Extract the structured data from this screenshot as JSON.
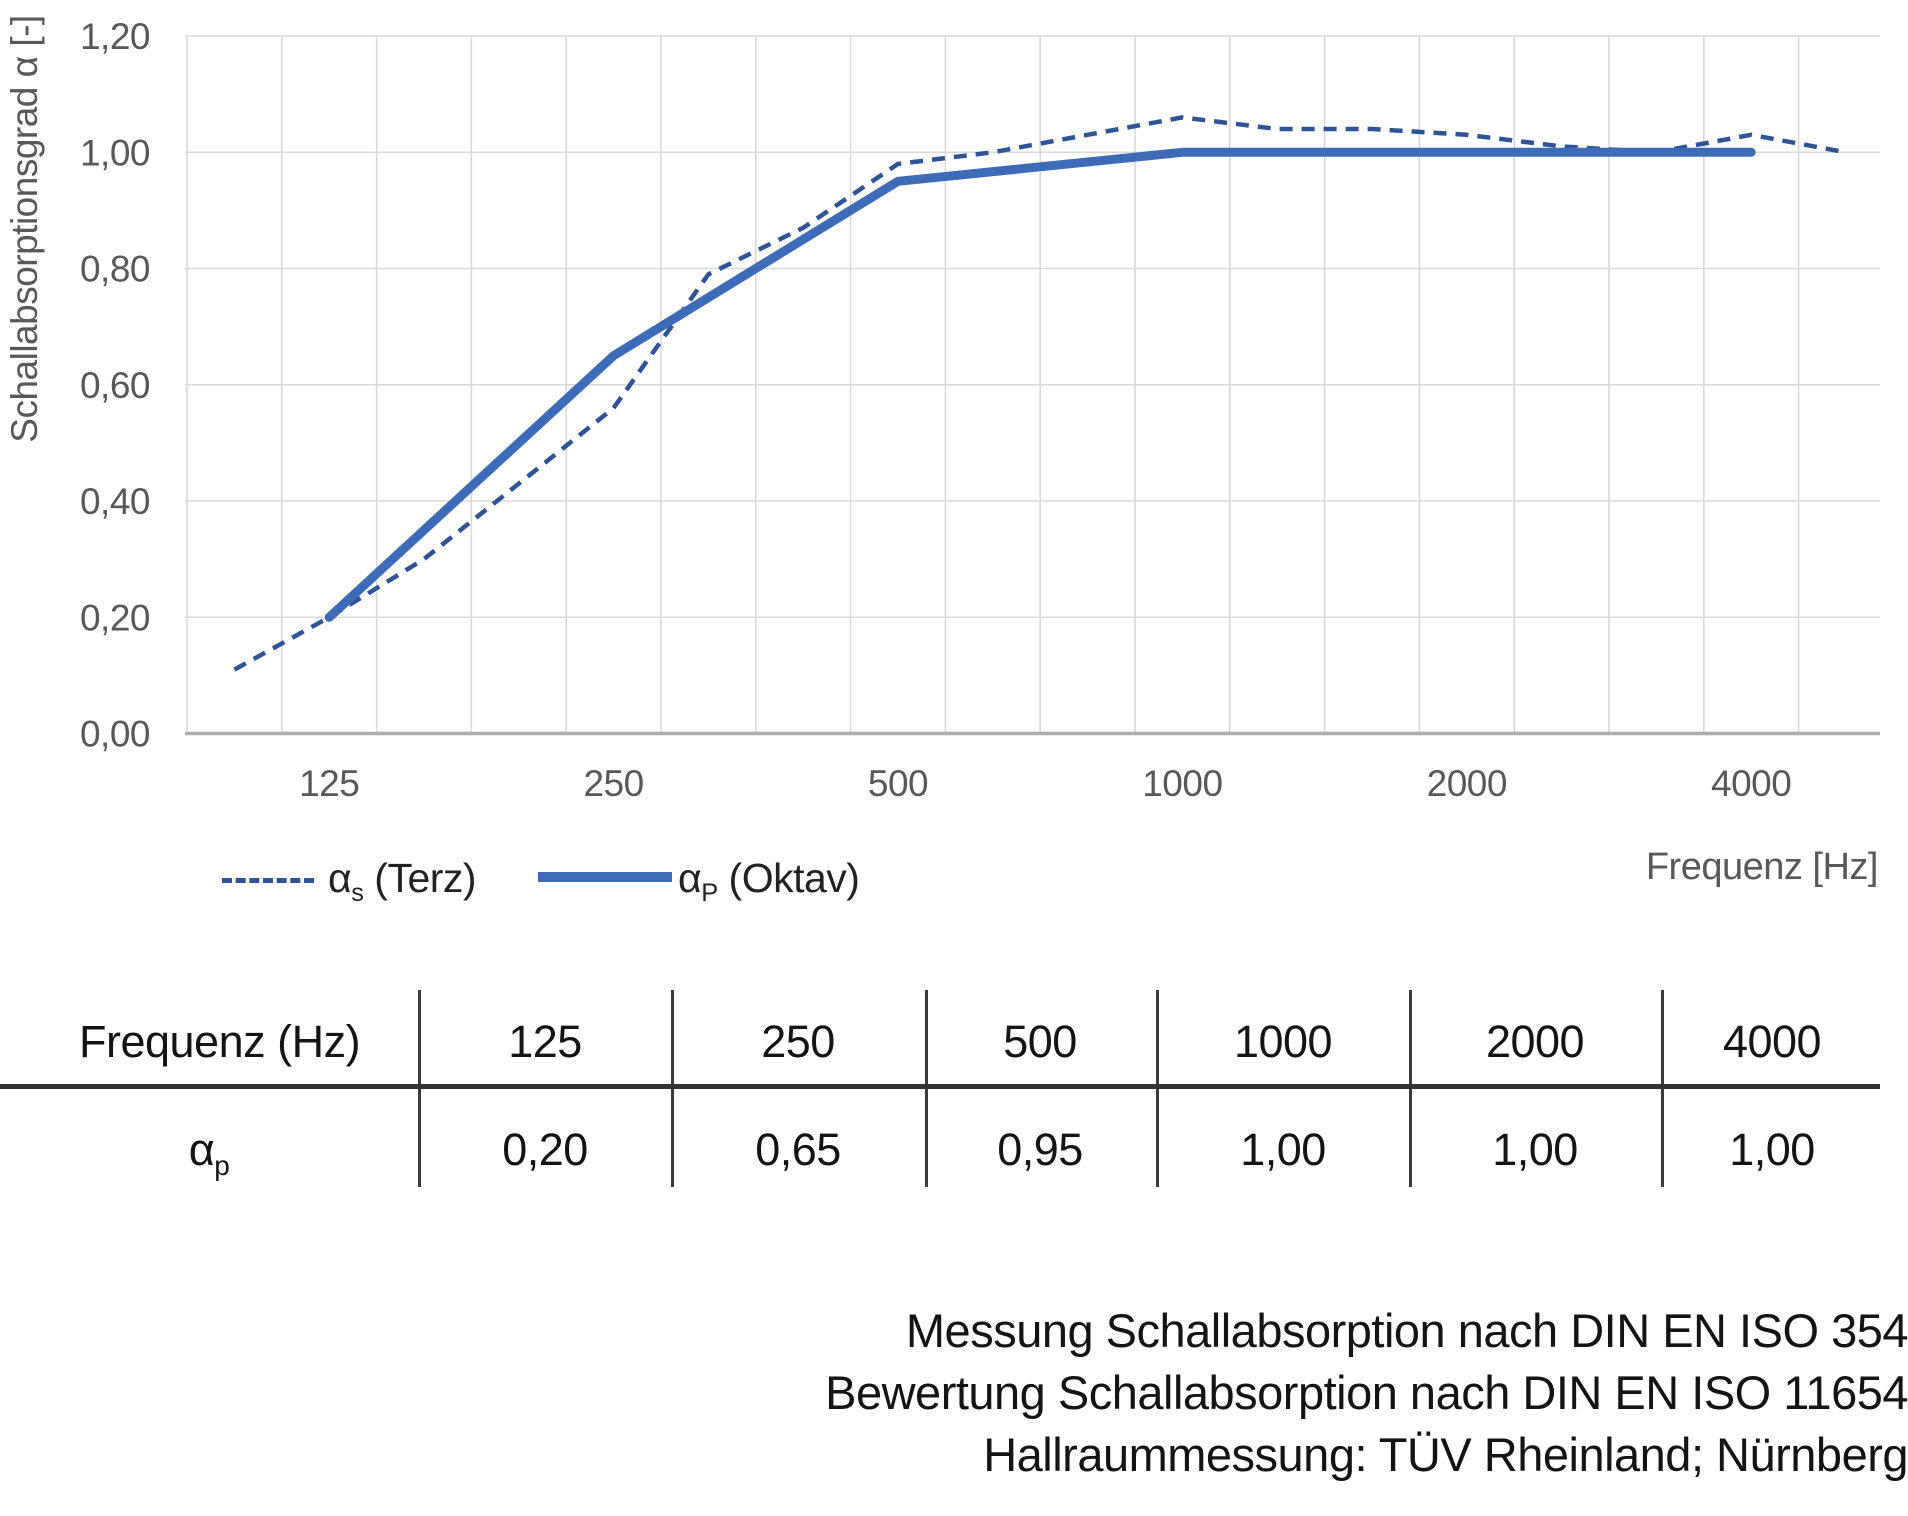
{
  "chart": {
    "ylabel": "Schallabsorptionsgrad α [-]",
    "xlabel": "Frequenz [Hz]"
  },
  "chart_data": {
    "type": "line",
    "title": "",
    "xlabel": "Frequenz [Hz]",
    "ylabel": "Schallabsorptionsgrad α [-]",
    "ylim": [
      0,
      1.2
    ],
    "grid": true,
    "legend_position": "bottom-left",
    "x_categories": [
      100,
      125,
      160,
      200,
      250,
      315,
      400,
      500,
      630,
      800,
      1000,
      1250,
      1600,
      2000,
      2500,
      3150,
      4000,
      5000
    ],
    "x_tick_labels": [
      "125",
      "250",
      "500",
      "1000",
      "2000",
      "4000"
    ],
    "y_ticks": [
      "0,00",
      "0,20",
      "0,40",
      "0,60",
      "0,80",
      "1,00",
      "1,20"
    ],
    "grid_color": "#D9D9D9",
    "axis_color": "#ADADAD",
    "series": [
      {
        "name": "αs (Terz)",
        "style": "dashed",
        "color": "#2F5496",
        "x": [
          100,
          125,
          160,
          200,
          250,
          315,
          400,
          500,
          630,
          800,
          1000,
          1250,
          1600,
          2000,
          2500,
          3150,
          4000,
          5000
        ],
        "values": [
          0.11,
          0.2,
          0.3,
          0.43,
          0.56,
          0.79,
          0.87,
          0.98,
          1.0,
          1.03,
          1.06,
          1.04,
          1.04,
          1.03,
          1.01,
          1.0,
          1.03,
          1.0
        ]
      },
      {
        "name": "αP (Oktav)",
        "style": "solid",
        "color": "#3E6BB7",
        "x": [
          125,
          250,
          500,
          1000,
          2000,
          4000
        ],
        "values": [
          0.2,
          0.65,
          0.95,
          1.0,
          1.0,
          1.0
        ]
      }
    ]
  },
  "legend": {
    "terz": {
      "alpha": "α",
      "sub": "s",
      "rest": " (Terz)"
    },
    "oktav": {
      "alpha": "α",
      "sub": "P",
      "rest": " (Oktav)"
    }
  },
  "table": {
    "headers": [
      "Frequenz (Hz)",
      "125",
      "250",
      "500",
      "1000",
      "2000",
      "4000"
    ],
    "row_label": {
      "alpha": "α",
      "sub": "p"
    },
    "values": [
      "0,20",
      "0,65",
      "0,95",
      "1,00",
      "1,00",
      "1,00"
    ]
  },
  "notes": {
    "line1": "Messung Schallabsorption nach DIN EN ISO 354",
    "line2": "Bewertung Schallabsorption nach DIN EN ISO 11654",
    "line3": "Hallraummessung: TÜV Rheinland; Nürnberg"
  }
}
